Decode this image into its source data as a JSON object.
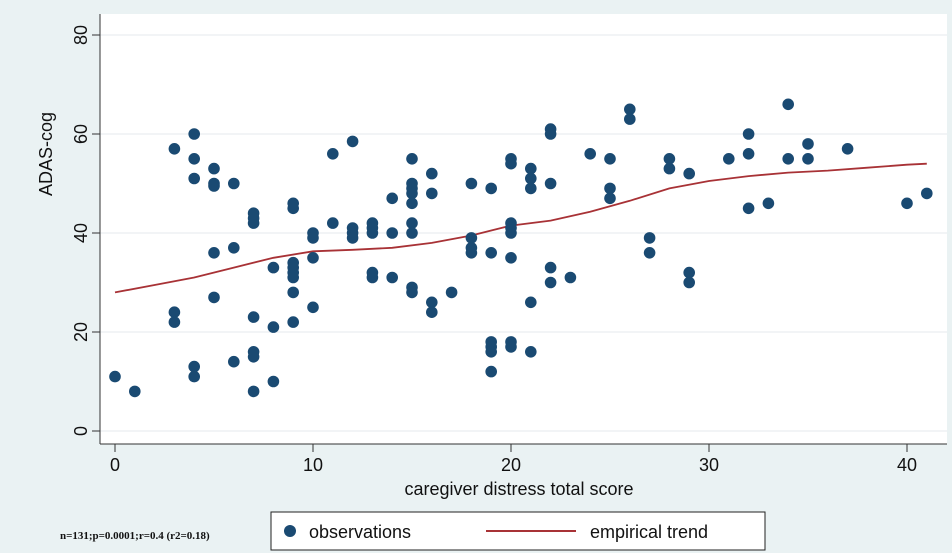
{
  "chart_data": {
    "type": "scatter",
    "xlabel": "caregiver distress total score",
    "ylabel": "ADAS-cog",
    "xlim": [
      0,
      41
    ],
    "ylim": [
      0,
      80
    ],
    "x_ticks": [
      0,
      10,
      20,
      30,
      40
    ],
    "y_ticks": [
      0,
      20,
      40,
      60,
      80
    ],
    "grid": "horizontal",
    "legend_position": "bottom",
    "note": "n=131;p=0.0001;r=0.4 (r2=0.18)",
    "colors": {
      "points": "#1a4a72",
      "trend": "#a83236",
      "background": "#eaf2f3",
      "plot_bg": "#ffffff"
    },
    "series": [
      {
        "name": "observations",
        "kind": "scatter",
        "points": [
          [
            0,
            11
          ],
          [
            1,
            8
          ],
          [
            3,
            57
          ],
          [
            3,
            24
          ],
          [
            3,
            22
          ],
          [
            4,
            60
          ],
          [
            4,
            55
          ],
          [
            4,
            51
          ],
          [
            4,
            13
          ],
          [
            4,
            11
          ],
          [
            5,
            53
          ],
          [
            5,
            50
          ],
          [
            5,
            49.5
          ],
          [
            5,
            36
          ],
          [
            5,
            27
          ],
          [
            6,
            50
          ],
          [
            6,
            37
          ],
          [
            6,
            14
          ],
          [
            7,
            44
          ],
          [
            7,
            43
          ],
          [
            7,
            42
          ],
          [
            7,
            23
          ],
          [
            7,
            16
          ],
          [
            7,
            15
          ],
          [
            7,
            8
          ],
          [
            8,
            33
          ],
          [
            8,
            21
          ],
          [
            8,
            10
          ],
          [
            9,
            46
          ],
          [
            9,
            45
          ],
          [
            9,
            34
          ],
          [
            9,
            33
          ],
          [
            9,
            32
          ],
          [
            9,
            31
          ],
          [
            9,
            28
          ],
          [
            9,
            22
          ],
          [
            10,
            40
          ],
          [
            10,
            39
          ],
          [
            10,
            35
          ],
          [
            10,
            25
          ],
          [
            11,
            56
          ],
          [
            11,
            42
          ],
          [
            12,
            58.5
          ],
          [
            12,
            41
          ],
          [
            12,
            40
          ],
          [
            12,
            39
          ],
          [
            13,
            42
          ],
          [
            13,
            41
          ],
          [
            13,
            40
          ],
          [
            13,
            32
          ],
          [
            13,
            31
          ],
          [
            14,
            47
          ],
          [
            14,
            40
          ],
          [
            14,
            31
          ],
          [
            15,
            55
          ],
          [
            15,
            50
          ],
          [
            15,
            49
          ],
          [
            15,
            48
          ],
          [
            15,
            46
          ],
          [
            15,
            42
          ],
          [
            15,
            40
          ],
          [
            15,
            29
          ],
          [
            15,
            28
          ],
          [
            16,
            52
          ],
          [
            16,
            48
          ],
          [
            16,
            26
          ],
          [
            16,
            24
          ],
          [
            17,
            28
          ],
          [
            18,
            50
          ],
          [
            18,
            39
          ],
          [
            18,
            37
          ],
          [
            18,
            36
          ],
          [
            19,
            49
          ],
          [
            19,
            36
          ],
          [
            19,
            18
          ],
          [
            19,
            17
          ],
          [
            19,
            16
          ],
          [
            19,
            12
          ],
          [
            20,
            55
          ],
          [
            20,
            54
          ],
          [
            20,
            42
          ],
          [
            20,
            41
          ],
          [
            20,
            40
          ],
          [
            20,
            35
          ],
          [
            20,
            18
          ],
          [
            20,
            17
          ],
          [
            21,
            53
          ],
          [
            21,
            51
          ],
          [
            21,
            49
          ],
          [
            21,
            26
          ],
          [
            21,
            16
          ],
          [
            22,
            61
          ],
          [
            22,
            60
          ],
          [
            22,
            50
          ],
          [
            22,
            33
          ],
          [
            22,
            30
          ],
          [
            23,
            31
          ],
          [
            24,
            56
          ],
          [
            25,
            55
          ],
          [
            25,
            49
          ],
          [
            25,
            47
          ],
          [
            26,
            65
          ],
          [
            26,
            63
          ],
          [
            27,
            39
          ],
          [
            27,
            36
          ],
          [
            28,
            55
          ],
          [
            28,
            53
          ],
          [
            29,
            52
          ],
          [
            29,
            32
          ],
          [
            29,
            30
          ],
          [
            31,
            55
          ],
          [
            32,
            60
          ],
          [
            32,
            56
          ],
          [
            32,
            45
          ],
          [
            33,
            46
          ],
          [
            34,
            66
          ],
          [
            34,
            55
          ],
          [
            35,
            58
          ],
          [
            35,
            55
          ],
          [
            37,
            57
          ],
          [
            40,
            46
          ],
          [
            41,
            48
          ]
        ]
      },
      {
        "name": "empirical trend",
        "kind": "line",
        "points": [
          [
            0,
            28
          ],
          [
            2,
            29.5
          ],
          [
            4,
            31
          ],
          [
            6,
            33
          ],
          [
            8,
            35
          ],
          [
            10,
            36.3
          ],
          [
            12,
            36.6
          ],
          [
            14,
            37
          ],
          [
            16,
            38
          ],
          [
            18,
            39.5
          ],
          [
            19,
            40.5
          ],
          [
            20,
            41.5
          ],
          [
            22,
            42.5
          ],
          [
            24,
            44.3
          ],
          [
            26,
            46.5
          ],
          [
            28,
            49
          ],
          [
            30,
            50.5
          ],
          [
            32,
            51.5
          ],
          [
            34,
            52.2
          ],
          [
            36,
            52.6
          ],
          [
            38,
            53.2
          ],
          [
            40,
            53.8
          ],
          [
            41,
            54
          ]
        ]
      }
    ]
  }
}
